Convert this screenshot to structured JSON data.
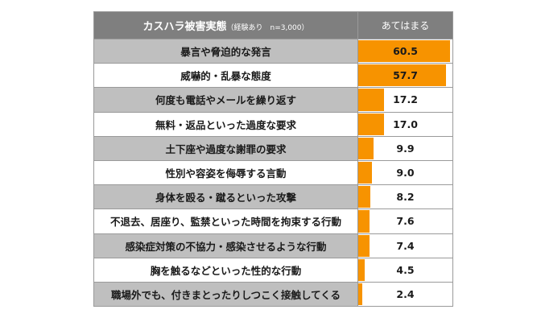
{
  "chart_data": {
    "type": "table",
    "title": "カスハラ被害実態",
    "subtitle": "（経験あり　n=3,000）",
    "value_header": "あてはまる",
    "max": 62,
    "bar_color": "#f79300",
    "categories": [
      "暴言や脅迫的な発言",
      "威嚇的・乱暴な態度",
      "何度も電話やメールを繰り返す",
      "無料・返品といった過度な要求",
      "土下座や過度な謝罪の要求",
      "性別や容姿を侮辱する言動",
      "身体を殴る・蹴るといった攻撃",
      "不退去、居座り、監禁といった時間を拘束する行動",
      "感染症対策の不協力・感染させるような行動",
      "胸を触るなどといった性的な行動",
      "職場外でも、付きまとったりしつこく接触してくる"
    ],
    "values": [
      60.5,
      57.7,
      17.2,
      17.0,
      9.9,
      9.0,
      8.2,
      7.6,
      7.4,
      4.5,
      2.4
    ]
  }
}
